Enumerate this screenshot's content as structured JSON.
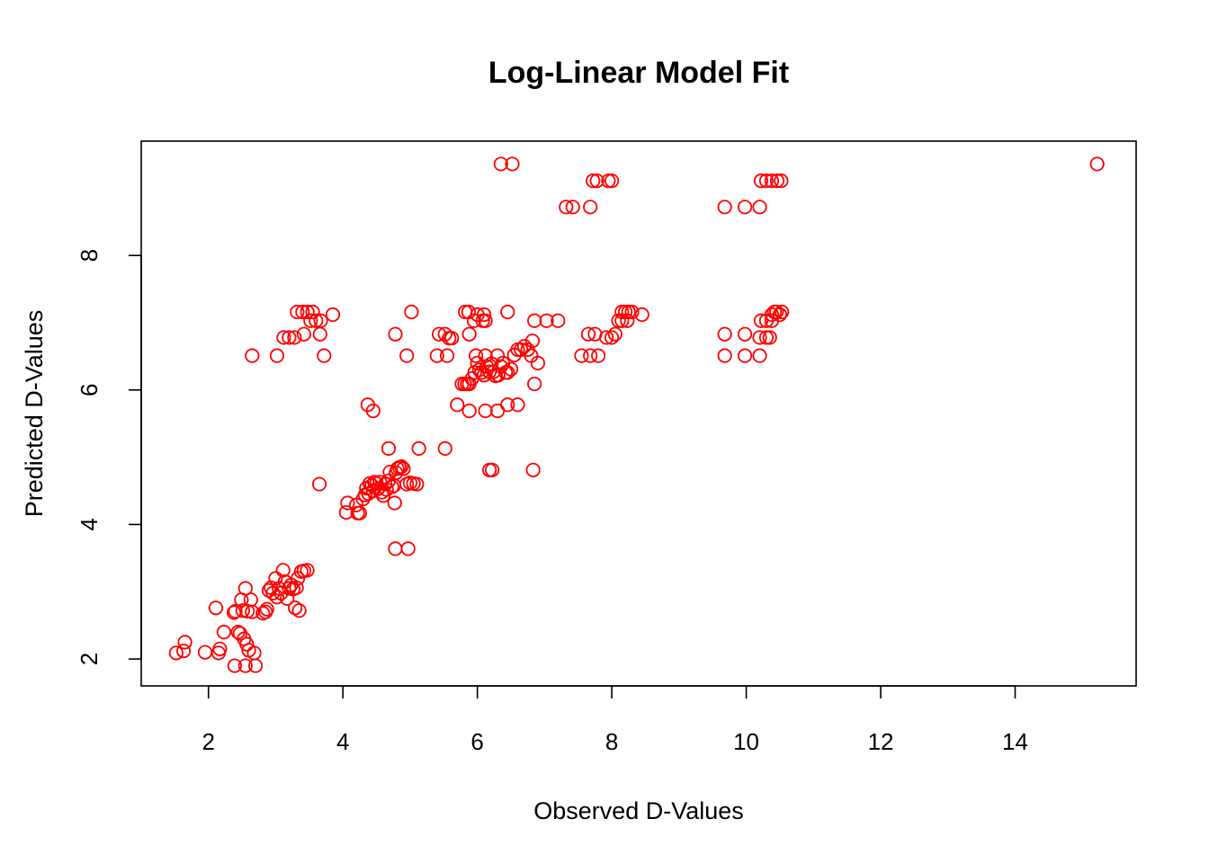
{
  "chart_data": {
    "type": "scatter",
    "title": "Log-Linear Model Fit",
    "xlabel": "Observed D-Values",
    "ylabel": "Predicted  D-Values",
    "xlim": [
      1.0,
      15.8
    ],
    "ylim": [
      1.6,
      9.7
    ],
    "xticks": [
      2,
      4,
      6,
      8,
      10,
      12,
      14
    ],
    "yticks": [
      2,
      4,
      6,
      8
    ],
    "grid": false,
    "legend": "none",
    "point_color": "#ff0000",
    "marker": "open-circle",
    "series": [
      {
        "x": [
          1.52,
          1.63,
          1.65,
          1.95,
          2.11,
          2.15,
          2.17,
          2.23,
          2.38,
          2.4,
          2.44,
          2.47,
          2.49,
          2.51,
          2.53,
          2.55,
          2.57,
          2.58,
          2.6,
          2.63,
          2.65,
          2.68,
          2.39,
          2.55,
          2.7,
          2.81,
          2.85,
          2.87,
          2.9,
          2.93,
          2.96,
          3.0,
          3.02,
          3.05,
          3.08,
          3.11,
          3.14,
          3.17,
          3.2,
          3.23,
          3.26,
          3.29,
          3.31,
          3.33,
          3.35,
          3.38,
          3.42,
          3.47,
          4.05,
          4.07,
          4.2,
          4.22,
          4.25,
          4.3,
          4.33,
          4.35,
          4.38,
          4.4,
          4.43,
          4.45,
          4.47,
          4.5,
          4.52,
          4.55,
          4.58,
          4.6,
          4.63,
          4.65,
          4.68,
          4.7,
          4.73,
          4.76,
          4.79,
          4.81,
          4.84,
          4.87,
          4.9,
          4.95,
          5.0,
          5.05,
          5.1,
          3.65,
          4.77,
          4.78,
          4.97,
          4.68,
          5.13,
          5.52,
          4.37,
          4.45,
          5.7,
          5.88,
          6.12,
          6.3,
          6.45,
          6.6,
          5.77,
          5.81,
          5.85,
          5.88,
          5.92,
          5.96,
          6.0,
          6.03,
          6.06,
          6.1,
          6.14,
          6.18,
          6.21,
          6.24,
          6.27,
          6.31,
          6.35,
          6.38,
          6.42,
          6.45,
          6.5,
          6.55,
          6.6,
          6.65,
          6.7,
          6.75,
          6.8,
          6.85,
          6.9,
          6.18,
          6.22,
          6.83,
          2.65,
          3.02,
          3.72,
          4.95,
          5.4,
          5.55,
          5.98,
          6.12,
          6.3,
          7.55,
          7.68,
          7.8,
          9.68,
          9.98,
          10.2,
          3.12,
          3.2,
          3.28,
          3.42,
          3.66,
          4.78,
          5.43,
          5.52,
          5.58,
          5.62,
          5.88,
          6.82,
          7.65,
          7.75,
          7.92,
          8.0,
          8.05,
          9.68,
          9.98,
          10.2,
          10.3,
          10.35,
          3.52,
          3.6,
          3.67,
          5.95,
          6.08,
          6.12,
          6.85,
          7.03,
          7.2,
          8.1,
          8.15,
          8.23,
          10.22,
          10.3,
          10.38,
          3.32,
          3.4,
          3.47,
          3.55,
          3.85,
          5.02,
          5.82,
          5.87,
          6.0,
          6.1,
          6.45,
          8.15,
          8.2,
          8.25,
          8.3,
          8.45,
          10.38,
          10.42,
          10.45,
          10.5,
          10.53,
          7.32,
          7.42,
          7.68,
          9.68,
          9.98,
          10.2,
          7.72,
          7.78,
          7.95,
          8.0,
          10.22,
          10.3,
          10.38,
          10.46,
          10.52,
          6.35,
          6.52,
          15.22
        ],
        "y": [
          2.09,
          2.12,
          2.25,
          2.1,
          2.76,
          2.09,
          2.15,
          2.4,
          2.69,
          2.71,
          2.4,
          2.38,
          2.88,
          2.72,
          2.3,
          3.05,
          2.22,
          2.71,
          2.13,
          2.88,
          2.7,
          2.09,
          1.9,
          1.9,
          1.9,
          2.68,
          2.7,
          2.74,
          3.02,
          3.06,
          2.98,
          3.2,
          2.92,
          3.05,
          2.98,
          3.32,
          3.15,
          2.9,
          3.05,
          3.1,
          3.04,
          2.76,
          3.06,
          3.2,
          2.72,
          3.3,
          3.31,
          3.32,
          4.18,
          4.32,
          4.29,
          4.17,
          4.17,
          4.38,
          4.44,
          4.54,
          4.46,
          4.61,
          4.58,
          4.5,
          4.63,
          4.61,
          4.53,
          4.63,
          4.48,
          4.43,
          4.6,
          4.52,
          4.65,
          4.78,
          4.56,
          4.58,
          4.77,
          4.83,
          4.85,
          4.86,
          4.83,
          4.6,
          4.62,
          4.61,
          4.6,
          4.6,
          4.32,
          3.64,
          3.64,
          5.13,
          5.13,
          5.13,
          5.78,
          5.69,
          5.78,
          5.69,
          5.69,
          5.69,
          5.78,
          5.78,
          6.09,
          6.09,
          6.09,
          6.09,
          6.17,
          6.26,
          6.4,
          6.3,
          6.26,
          6.22,
          6.35,
          6.27,
          6.39,
          6.27,
          6.21,
          6.22,
          6.35,
          6.4,
          6.26,
          6.26,
          6.31,
          6.52,
          6.6,
          6.6,
          6.65,
          6.6,
          6.51,
          6.09,
          6.4,
          4.81,
          4.81,
          4.81,
          6.51,
          6.51,
          6.51,
          6.51,
          6.51,
          6.51,
          6.51,
          6.51,
          6.51,
          6.51,
          6.51,
          6.51,
          6.51,
          6.51,
          6.51,
          6.78,
          6.78,
          6.78,
          6.83,
          6.83,
          6.83,
          6.83,
          6.83,
          6.77,
          6.77,
          6.83,
          6.73,
          6.83,
          6.83,
          6.78,
          6.78,
          6.83,
          6.83,
          6.83,
          6.78,
          6.78,
          6.78,
          7.03,
          7.03,
          7.03,
          7.03,
          7.03,
          7.03,
          7.03,
          7.03,
          7.03,
          7.03,
          7.03,
          7.03,
          7.03,
          7.03,
          7.03,
          7.16,
          7.16,
          7.16,
          7.16,
          7.12,
          7.16,
          7.16,
          7.16,
          7.12,
          7.12,
          7.16,
          7.16,
          7.16,
          7.16,
          7.16,
          7.12,
          7.12,
          7.16,
          7.16,
          7.12,
          7.16,
          8.72,
          8.72,
          8.72,
          8.72,
          8.72,
          8.72,
          9.11,
          9.11,
          9.11,
          9.11,
          9.11,
          9.11,
          9.11,
          9.11,
          9.11,
          9.36,
          9.36,
          9.36
        ]
      }
    ]
  }
}
